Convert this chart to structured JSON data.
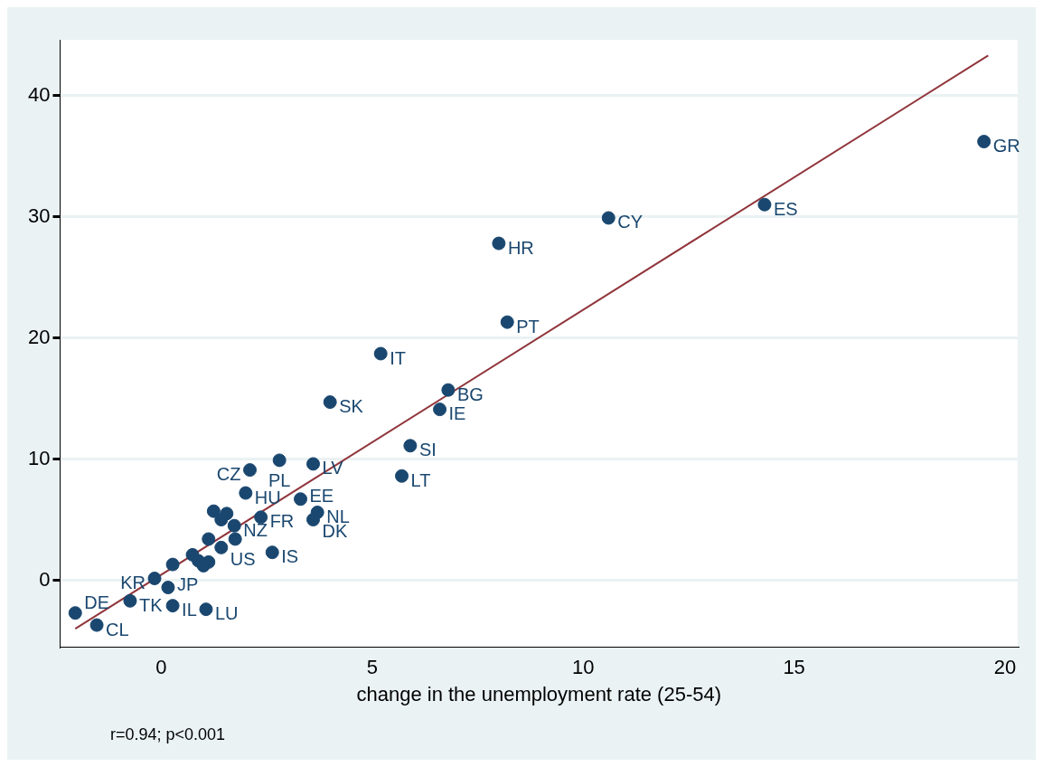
{
  "chart_data": {
    "type": "scatter",
    "xlabel": "change in the unemployment rate (25-54)",
    "xlim": [
      -2.4,
      20.3
    ],
    "xticks": [
      0,
      5,
      10,
      15,
      20
    ],
    "ylim": [
      -5.5,
      44.6
    ],
    "yticks": [
      0,
      10,
      20,
      30,
      40
    ],
    "grid": "y",
    "legend": false,
    "series": [
      {
        "marker": "circle",
        "color": "#1a476f",
        "x": [
          19.5,
          14.3,
          10.6,
          8.0,
          8.2,
          5.2,
          6.8,
          6.6,
          4.0,
          5.9,
          5.7,
          2.8,
          3.6,
          2.1,
          2.0,
          3.3,
          3.7,
          3.6,
          2.36,
          1.24,
          1.55,
          1.42,
          1.73,
          1.12,
          1.62,
          1.75,
          1.42,
          2.63,
          0.74,
          0.88,
          1.12,
          1.0,
          0.27,
          -0.16,
          0.16,
          -0.74,
          0.27,
          1.06,
          -2.04,
          -1.53
        ],
        "values": [
          36.2,
          31.0,
          29.9,
          27.8,
          21.3,
          18.7,
          15.7,
          14.1,
          14.7,
          11.1,
          8.6,
          9.9,
          9.6,
          9.1,
          7.2,
          6.7,
          5.6,
          5.0,
          5.2,
          5.7,
          5.5,
          5.0,
          4.5,
          3.4,
          null,
          3.4,
          2.7,
          2.3,
          2.1,
          1.6,
          1.5,
          1.2,
          1.3,
          0.15,
          -0.6,
          -1.7,
          -2.1,
          -2.4,
          -2.7,
          -3.7
        ]
      },
      {
        "type": "line",
        "marker": "none",
        "color": "#90353b",
        "x": [
          -2.04,
          19.6
        ],
        "values": [
          -4.0,
          43.3
        ]
      }
    ],
    "annotations": [
      {
        "text": "GR",
        "x": 19.5,
        "y": 36.2
      },
      {
        "text": "ES",
        "x": 14.3,
        "y": 31.0
      },
      {
        "text": "CY",
        "x": 10.6,
        "y": 29.9
      },
      {
        "text": "HR",
        "x": 8.0,
        "y": 27.8
      },
      {
        "text": "PT",
        "x": 8.2,
        "y": 21.3
      },
      {
        "text": "IT",
        "x": 5.2,
        "y": 18.7
      },
      {
        "text": "BG",
        "x": 6.8,
        "y": 15.7
      },
      {
        "text": "IE",
        "x": 6.6,
        "y": 14.1
      },
      {
        "text": "SK",
        "x": 4.0,
        "y": 14.7
      },
      {
        "text": "SI",
        "x": 5.9,
        "y": 11.1
      },
      {
        "text": "LT",
        "x": 5.7,
        "y": 8.6
      },
      {
        "text": "PL",
        "x": 2.8,
        "y": 9.9
      },
      {
        "text": "LV",
        "x": 3.6,
        "y": 9.6
      },
      {
        "text": "CZ",
        "x": 2.1,
        "y": 9.1
      },
      {
        "text": "HU",
        "x": 2.0,
        "y": 7.2
      },
      {
        "text": "EE",
        "x": 3.3,
        "y": 6.7
      },
      {
        "text": "NL",
        "x": 3.7,
        "y": 5.6
      },
      {
        "text": "DK",
        "x": 3.6,
        "y": 5.0
      },
      {
        "text": "FR",
        "x": 2.36,
        "y": 5.2
      },
      {
        "text": "NZ",
        "x": 1.73,
        "y": 4.5
      },
      {
        "text": "US",
        "x": 1.42,
        "y": 2.7
      },
      {
        "text": "IS",
        "x": 2.63,
        "y": 2.3
      },
      {
        "text": "KR",
        "x": -0.16,
        "y": 0.15
      },
      {
        "text": "JP",
        "x": 0.16,
        "y": -0.6
      },
      {
        "text": "TK",
        "x": -0.74,
        "y": -1.7
      },
      {
        "text": "IL",
        "x": 0.27,
        "y": -2.1
      },
      {
        "text": "LU",
        "x": 1.06,
        "y": -2.4
      },
      {
        "text": "DE",
        "x": -2.04,
        "y": -2.7
      },
      {
        "text": "CL",
        "x": -1.53,
        "y": -3.7
      },
      "r=0.94; p<0.001"
    ]
  }
}
